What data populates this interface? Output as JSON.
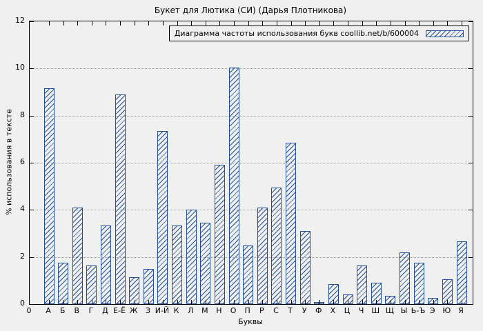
{
  "colors": {
    "bar_outline": "#1f4e9e",
    "hatch": "#1f4e9e",
    "background": "#f0f0f0",
    "grid": "#9a9a9a",
    "axis": "#000000"
  },
  "chart_data": {
    "type": "bar",
    "title": "Букет для Лютика (СИ) (Дарья Плотникова)",
    "legend": "Диаграмма частоты использования букв coollib.net/b/600004",
    "legend_position": "top-right",
    "xlabel": "Буквы",
    "ylabel": "% использования в тексте",
    "origin_tick": "0",
    "ylim": [
      0,
      12
    ],
    "yticks": [
      0,
      2,
      4,
      6,
      8,
      10,
      12
    ],
    "grid": "horizontal dotted",
    "categories": [
      "А",
      "Б",
      "В",
      "Г",
      "Д",
      "Е-Ё",
      "Ж",
      "З",
      "И-Й",
      "К",
      "Л",
      "М",
      "Н",
      "О",
      "П",
      "Р",
      "С",
      "Т",
      "У",
      "Ф",
      "Х",
      "Ц",
      "Ч",
      "Ш",
      "Щ",
      "Ы",
      "Ь-Ъ",
      "Э",
      "Ю",
      "Я"
    ],
    "values": [
      9.15,
      1.75,
      4.1,
      1.65,
      3.35,
      8.9,
      1.15,
      1.5,
      7.35,
      3.35,
      4.0,
      3.45,
      5.9,
      10.05,
      2.5,
      4.1,
      4.95,
      6.85,
      3.1,
      0.1,
      0.85,
      0.4,
      1.65,
      0.9,
      0.35,
      2.2,
      1.75,
      0.25,
      1.05,
      2.65
    ]
  }
}
